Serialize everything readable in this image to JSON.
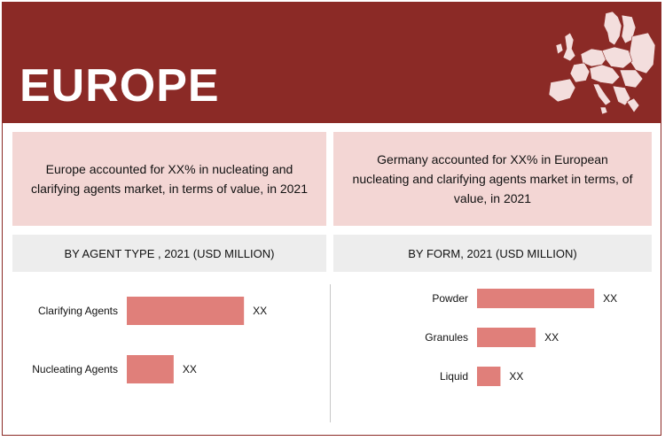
{
  "region": "EUROPE",
  "stats": [
    {
      "text": "Europe accounted for XX% in nucleating and clarifying agents  market, in terms of value, in 2021"
    },
    {
      "text": "Germany accounted for XX% in European nucleating and clarifying agents market  in terms, of value, in 2021"
    }
  ],
  "colors": {
    "banner": "#8b2a26",
    "stat_box": "#f3d6d4",
    "panel_header": "#ededed",
    "bar": "#e07f7a"
  },
  "chart_data": [
    {
      "type": "bar",
      "orientation": "horizontal",
      "title": "BY AGENT TYPE , 2021 (USD MILLION)",
      "categories": [
        "Clarifying Agents",
        "Nucleating Agents"
      ],
      "values": [
        2.0,
        0.8
      ],
      "value_labels": [
        "XX",
        "XX"
      ],
      "xlim": [
        0,
        2.3
      ],
      "grid": false,
      "legend": "none"
    },
    {
      "type": "bar",
      "orientation": "horizontal",
      "title": "BY FORM, 2021 (USD MILLION)",
      "categories": [
        "Powder",
        "Granules",
        "Liquid"
      ],
      "values": [
        2.0,
        1.0,
        0.4
      ],
      "value_labels": [
        "XX",
        "XX",
        "XX"
      ],
      "xlim": [
        0,
        2.3
      ],
      "grid": false,
      "legend": "none"
    }
  ]
}
